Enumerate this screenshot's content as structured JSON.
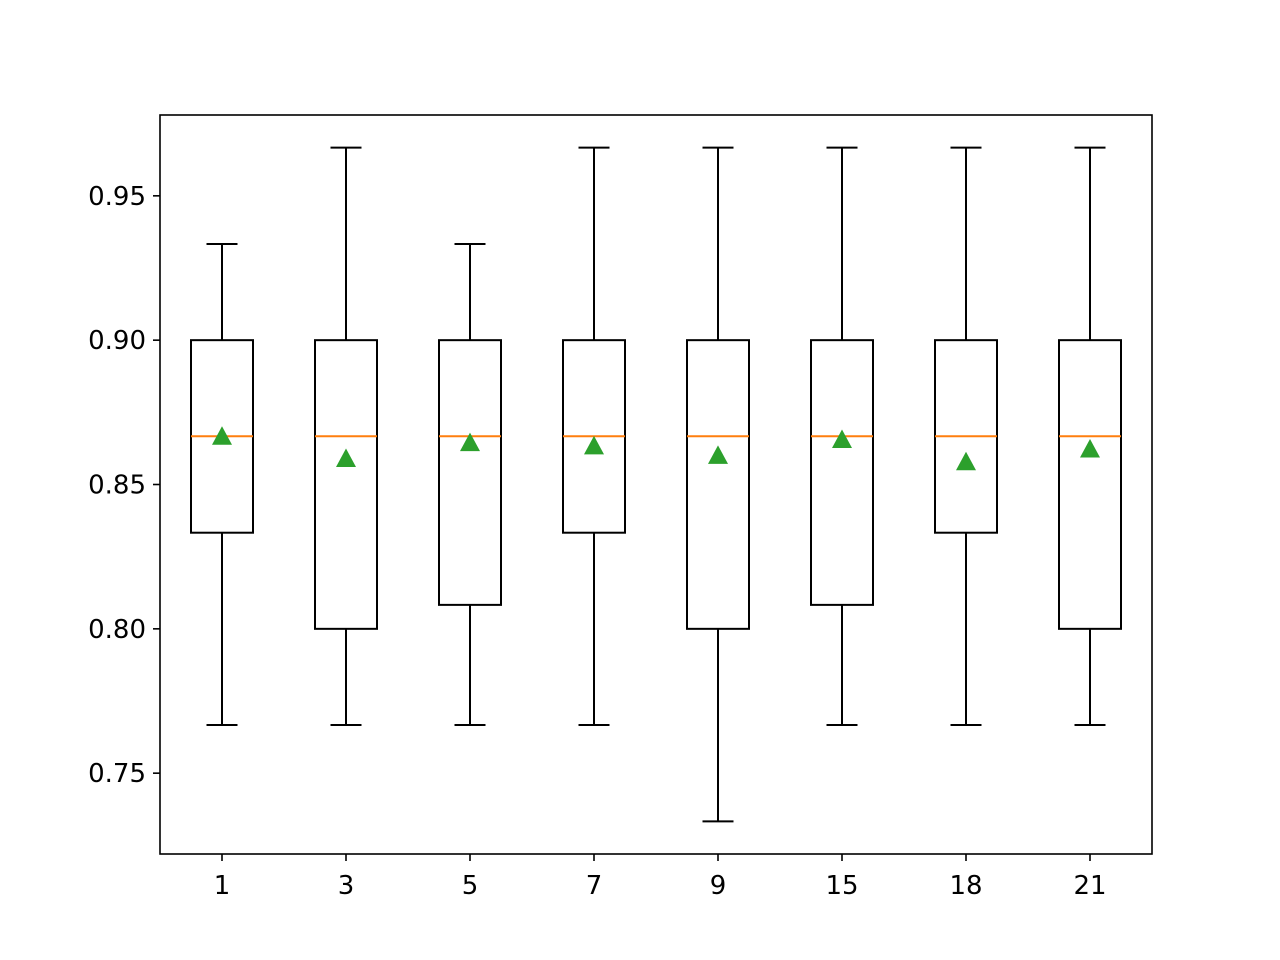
{
  "chart_data": {
    "type": "box",
    "title": "",
    "xlabel": "",
    "ylabel": "",
    "categories": [
      "1",
      "3",
      "5",
      "7",
      "9",
      "15",
      "18",
      "21"
    ],
    "boxes": [
      {
        "label": "1",
        "whisker_low": 0.7667,
        "q1": 0.8333,
        "median": 0.8667,
        "q3": 0.9,
        "whisker_high": 0.9333,
        "mean": 0.8667
      },
      {
        "label": "3",
        "whisker_low": 0.7667,
        "q1": 0.8,
        "median": 0.8667,
        "q3": 0.9,
        "whisker_high": 0.9667,
        "mean": 0.859
      },
      {
        "label": "5",
        "whisker_low": 0.7667,
        "q1": 0.8083,
        "median": 0.8667,
        "q3": 0.9,
        "whisker_high": 0.9333,
        "mean": 0.8645
      },
      {
        "label": "7",
        "whisker_low": 0.7667,
        "q1": 0.8333,
        "median": 0.8667,
        "q3": 0.9,
        "whisker_high": 0.9667,
        "mean": 0.8634
      },
      {
        "label": "9",
        "whisker_low": 0.7333,
        "q1": 0.8,
        "median": 0.8667,
        "q3": 0.9,
        "whisker_high": 0.9667,
        "mean": 0.8601
      },
      {
        "label": "15",
        "whisker_low": 0.7667,
        "q1": 0.8083,
        "median": 0.8667,
        "q3": 0.9,
        "whisker_high": 0.9667,
        "mean": 0.8656
      },
      {
        "label": "18",
        "whisker_low": 0.7667,
        "q1": 0.8333,
        "median": 0.8667,
        "q3": 0.9,
        "whisker_high": 0.9667,
        "mean": 0.8579
      },
      {
        "label": "21",
        "whisker_low": 0.7667,
        "q1": 0.8,
        "median": 0.8667,
        "q3": 0.9,
        "whisker_high": 0.9667,
        "mean": 0.8623
      }
    ],
    "yticks": [
      "0.75",
      "0.80",
      "0.85",
      "0.90",
      "0.95"
    ],
    "ylim": [
      0.722,
      0.978
    ],
    "grid": false,
    "legend": "none",
    "colors": {
      "box": "#000000",
      "median": "#ff7f0e",
      "mean_marker": "#2ca02c"
    },
    "mean_marker_shape": "triangle"
  }
}
